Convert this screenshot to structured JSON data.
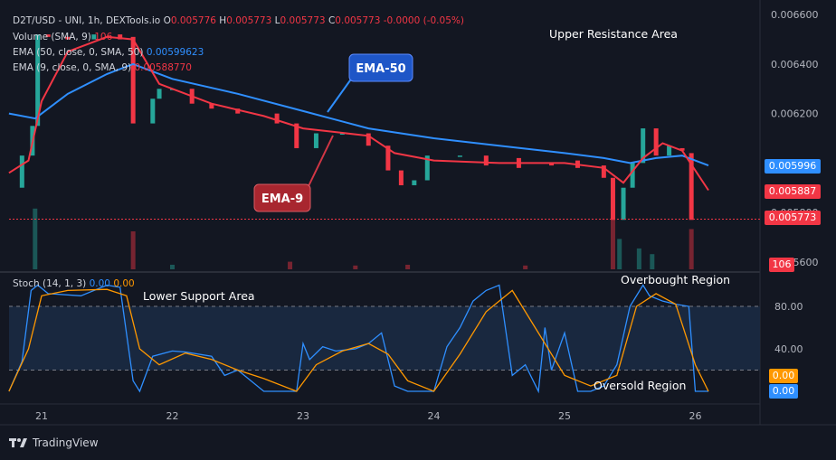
{
  "legend": {
    "pair": "D2T/USD - UNI, 1h, DEXTools.io",
    "ohlc_o_label": "O",
    "ohlc_o": "0.005776",
    "ohlc_h_label": "H",
    "ohlc_h": "0.005773",
    "ohlc_l_label": "L",
    "ohlc_l": "0.005773",
    "ohlc_c_label": "C",
    "ohlc_c": "0.005773",
    "change": "-0.0000 (-0.05%)",
    "volume_label": "Volume (SMA, 9)",
    "volume_value": "106",
    "ema50_label": "EMA (50, close, 0, SMA, 50)",
    "ema50_value": "0.00599623",
    "ema9_label": "EMA (9, close, 0, SMA, 9)",
    "ema9_value": "0.00588770",
    "stoch_label": "Stoch (14, 1, 3)",
    "stoch_k": "0.00",
    "stoch_d": "0.00"
  },
  "annotations": {
    "upper_resistance": "Upper Resistance Area",
    "lower_support": "Lower Support Area",
    "overbought": "Overbought Region",
    "oversold": "Oversold Region",
    "ema50_callout": "EMA-50",
    "ema9_callout": "EMA-9"
  },
  "price_tags": {
    "ema50": "0.005996",
    "ema9": "0.005887",
    "last": "0.005773",
    "volume": "106",
    "stoch_d": "0.00",
    "stoch_k": "0.00"
  },
  "footer": {
    "brand": "TradingView"
  },
  "colors": {
    "up": "#26a69a",
    "down": "#f23645",
    "ema50": "#2f8fff",
    "ema9": "#f23645",
    "stoch_k": "#2f8fff",
    "stoch_d": "#ff9800",
    "background": "#131722"
  },
  "chart_data": [
    {
      "type": "candlestick",
      "title": "D2T/USD - UNI, 1h, DEXTools.io",
      "x_ticks": [
        "21",
        "22",
        "23",
        "24",
        "25",
        "26"
      ],
      "y_ticks": [
        "0.006600",
        "0.006400",
        "0.006200",
        "0.006000",
        "0.005800",
        "0.005600"
      ],
      "ylim": [
        0.00557,
        0.00663
      ],
      "candles": [
        {
          "t": 20.85,
          "o": 0.0059,
          "c": 0.00603
        },
        {
          "t": 20.93,
          "o": 0.00603,
          "c": 0.00615
        },
        {
          "t": 20.97,
          "o": 0.00615,
          "c": 0.00652
        },
        {
          "t": 21.05,
          "o": 0.00652,
          "c": 0.00651
        },
        {
          "t": 21.2,
          "o": 0.00651,
          "c": 0.0065
        },
        {
          "t": 21.4,
          "o": 0.0065,
          "c": 0.00652
        },
        {
          "t": 21.6,
          "o": 0.00652,
          "c": 0.0065
        },
        {
          "t": 21.7,
          "o": 0.00651,
          "c": 0.00616
        },
        {
          "t": 21.85,
          "o": 0.00616,
          "c": 0.00626
        },
        {
          "t": 21.9,
          "o": 0.00626,
          "c": 0.0063
        },
        {
          "t": 22.0,
          "o": 0.0063,
          "c": 0.0063
        },
        {
          "t": 22.15,
          "o": 0.0063,
          "c": 0.00624
        },
        {
          "t": 22.3,
          "o": 0.00624,
          "c": 0.00622
        },
        {
          "t": 22.5,
          "o": 0.00622,
          "c": 0.0062
        },
        {
          "t": 22.8,
          "o": 0.0062,
          "c": 0.00616
        },
        {
          "t": 22.95,
          "o": 0.00616,
          "c": 0.00606
        },
        {
          "t": 23.1,
          "o": 0.00606,
          "c": 0.00612
        },
        {
          "t": 23.3,
          "o": 0.00612,
          "c": 0.00612
        },
        {
          "t": 23.5,
          "o": 0.00612,
          "c": 0.00607
        },
        {
          "t": 23.65,
          "o": 0.00607,
          "c": 0.00597
        },
        {
          "t": 23.75,
          "o": 0.00597,
          "c": 0.00591
        },
        {
          "t": 23.85,
          "o": 0.00591,
          "c": 0.00593
        },
        {
          "t": 23.95,
          "o": 0.00593,
          "c": 0.00603
        },
        {
          "t": 24.2,
          "o": 0.00603,
          "c": 0.00603
        },
        {
          "t": 24.4,
          "o": 0.00603,
          "c": 0.00599
        },
        {
          "t": 24.65,
          "o": 0.00602,
          "c": 0.00598
        },
        {
          "t": 24.9,
          "o": 0.006,
          "c": 0.00599
        },
        {
          "t": 25.1,
          "o": 0.00601,
          "c": 0.00598
        },
        {
          "t": 25.3,
          "o": 0.00599,
          "c": 0.00594
        },
        {
          "t": 25.37,
          "o": 0.00594,
          "c": 0.00577
        },
        {
          "t": 25.45,
          "o": 0.00577,
          "c": 0.0059
        },
        {
          "t": 25.52,
          "o": 0.0059,
          "c": 0.006
        },
        {
          "t": 25.6,
          "o": 0.006,
          "c": 0.00614
        },
        {
          "t": 25.7,
          "o": 0.00614,
          "c": 0.00603
        },
        {
          "t": 25.8,
          "o": 0.00603,
          "c": 0.00607
        },
        {
          "t": 25.9,
          "o": 0.00606,
          "c": 0.00605
        },
        {
          "t": 25.97,
          "o": 0.00604,
          "c": 0.00577
        }
      ],
      "volume": [
        {
          "t": 20.95,
          "v": 160,
          "dir": "up"
        },
        {
          "t": 21.7,
          "v": 100,
          "dir": "down"
        },
        {
          "t": 22.0,
          "v": 12,
          "dir": "up"
        },
        {
          "t": 22.9,
          "v": 20,
          "dir": "down"
        },
        {
          "t": 23.4,
          "v": 10,
          "dir": "down"
        },
        {
          "t": 23.8,
          "v": 12,
          "dir": "down"
        },
        {
          "t": 24.7,
          "v": 10,
          "dir": "down"
        },
        {
          "t": 25.37,
          "v": 180,
          "dir": "down"
        },
        {
          "t": 25.42,
          "v": 80,
          "dir": "up"
        },
        {
          "t": 25.57,
          "v": 55,
          "dir": "up"
        },
        {
          "t": 25.67,
          "v": 40,
          "dir": "up"
        },
        {
          "t": 25.97,
          "v": 106,
          "dir": "down"
        }
      ],
      "series": [
        {
          "name": "EMA (50, close, 0, SMA, 50)",
          "x": [
            20.75,
            20.95,
            21.2,
            21.5,
            21.7,
            22.0,
            22.5,
            23.0,
            23.5,
            24.0,
            24.5,
            25.0,
            25.3,
            25.5,
            25.7,
            25.9,
            26.1
          ],
          "y": [
            0.0062,
            0.00618,
            0.00628,
            0.00636,
            0.0064,
            0.00634,
            0.00628,
            0.00621,
            0.00614,
            0.0061,
            0.00607,
            0.00604,
            0.00602,
            0.006,
            0.00602,
            0.00603,
            0.00599
          ]
        },
        {
          "name": "EMA (9, close, 0, SMA, 9)",
          "x": [
            20.75,
            20.9,
            21.0,
            21.2,
            21.5,
            21.7,
            21.9,
            22.3,
            22.7,
            23.0,
            23.5,
            23.7,
            24.0,
            24.5,
            25.0,
            25.3,
            25.45,
            25.6,
            25.75,
            25.9,
            26.1
          ],
          "y": [
            0.00596,
            0.00601,
            0.00625,
            0.00645,
            0.00651,
            0.0065,
            0.00632,
            0.00624,
            0.00619,
            0.00614,
            0.00611,
            0.00604,
            0.00601,
            0.006,
            0.006,
            0.00598,
            0.00592,
            0.00602,
            0.00608,
            0.00605,
            0.00589
          ]
        }
      ]
    },
    {
      "type": "line",
      "title": "Stoch (14, 1, 3)",
      "y_ticks": [
        "80.00",
        "40.00"
      ],
      "ylim": [
        0,
        110
      ],
      "bands": [
        20,
        80
      ],
      "series": [
        {
          "name": "0.00",
          "role": "%K",
          "x": [
            20.75,
            20.85,
            20.92,
            20.97,
            21.05,
            21.3,
            21.5,
            21.6,
            21.7,
            21.75,
            21.85,
            22.0,
            22.1,
            22.3,
            22.4,
            22.5,
            22.7,
            22.95,
            23.0,
            23.05,
            23.15,
            23.25,
            23.4,
            23.5,
            23.6,
            23.7,
            23.8,
            23.9,
            24.0,
            24.1,
            24.2,
            24.3,
            24.4,
            24.5,
            24.6,
            24.7,
            24.8,
            24.85,
            24.9,
            25.0,
            25.1,
            25.2,
            25.3,
            25.4,
            25.5,
            25.6,
            25.65,
            25.75,
            25.85,
            25.95,
            26.0,
            26.1
          ],
          "y": [
            0,
            28,
            95,
            100,
            92,
            90,
            100,
            98,
            10,
            0,
            33,
            38,
            37,
            33,
            15,
            20,
            0,
            0,
            45,
            30,
            42,
            38,
            40,
            45,
            55,
            5,
            0,
            0,
            0,
            42,
            60,
            85,
            95,
            100,
            15,
            25,
            0,
            60,
            20,
            55,
            0,
            0,
            5,
            25,
            80,
            100,
            90,
            85,
            82,
            80,
            0,
            0
          ]
        },
        {
          "name": "0.00",
          "role": "%D",
          "x": [
            20.75,
            20.9,
            21.0,
            21.2,
            21.5,
            21.65,
            21.75,
            21.9,
            22.1,
            22.3,
            22.5,
            22.7,
            22.95,
            23.1,
            23.3,
            23.5,
            23.65,
            23.8,
            24.0,
            24.2,
            24.4,
            24.6,
            24.8,
            25.0,
            25.2,
            25.4,
            25.55,
            25.7,
            25.85,
            26.0,
            26.1
          ],
          "y": [
            0,
            40,
            90,
            95,
            96,
            90,
            40,
            25,
            36,
            30,
            20,
            12,
            0,
            25,
            38,
            45,
            35,
            10,
            0,
            35,
            75,
            95,
            55,
            15,
            5,
            15,
            80,
            92,
            82,
            25,
            0
          ]
        }
      ]
    }
  ]
}
